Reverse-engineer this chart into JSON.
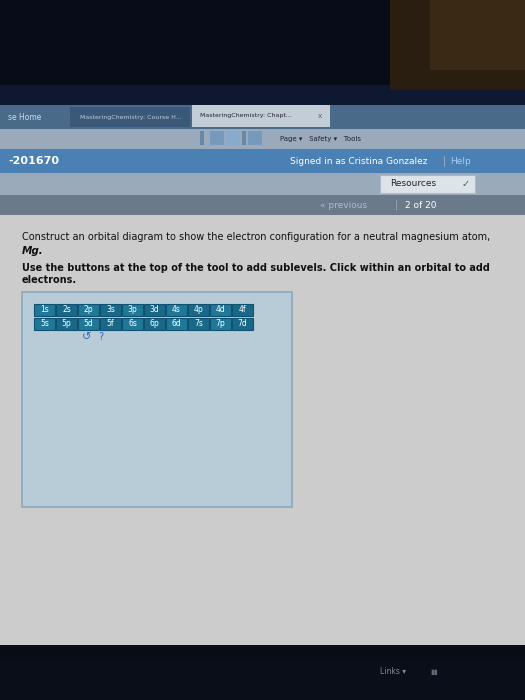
{
  "bg_outer_top": "#090e1a",
  "bg_outer_top_right": "#3a2a1a",
  "bg_outer_bottom": "#0a0a12",
  "bg_screen_bg": "#0d1420",
  "browser_tabbar_bg": "#3a5a7a",
  "browser_tab1_bg": "#4a6a8a",
  "browser_tab2_bg": "#c8d4dc",
  "browser_addrbar_bg": "#b0bcc8",
  "browser_addrbar_input": "#e8ecf0",
  "browser_nav_bg": "#4a80b0",
  "browser_resources_bar_bg": "#b0bcc8",
  "browser_resources_btn_bg": "#e8ecee",
  "browser_prevbar_bg": "#8090a0",
  "content_bg": "#d0d4d8",
  "tool_box_bg": "#b8ccd8",
  "tool_box_border": "#88aabc",
  "btn_blue": "#2060a0",
  "btn_teal": "#208090",
  "btn_border": "#104060",
  "text_dark": "#111111",
  "text_white": "#ffffff",
  "text_blue_link": "#2244cc",
  "text_nav_white": "#ffffff",
  "text_grey": "#888888",
  "id_text": "-201670",
  "signed_text": "Signed in as Cristina Gonzalez",
  "help_text": "Help",
  "resources_text": "Resources",
  "prev_text": "« previous",
  "page_text": "2 of 20",
  "home_text": "se Home",
  "tab1_text": "MasteringChemistry: Course H...",
  "tab2_text": "MasteringChemistry: Chapt...",
  "addr_icons": "▾   ▾   ▾   Page ▾   Safety ▾   Tools",
  "q_line1": "Construct an orbital diagram to show the electron configuration for a neutral magnesium atom,",
  "q_line2": "Mg.",
  "inst_line1": "Use the buttons at the top of the tool to add sublevels. Click within an orbital to add",
  "inst_line2": "electrons.",
  "row1": [
    "1s",
    "2s",
    "2p",
    "3s",
    "3p",
    "3d",
    "4s",
    "4p",
    "4d",
    "4f"
  ],
  "row2": [
    "5s",
    "5p",
    "5d",
    "5f",
    "6s",
    "6p",
    "6d",
    "7s",
    "7p",
    "7d"
  ],
  "refresh": "↺",
  "qmark": "?",
  "links_text": "Links ▾"
}
